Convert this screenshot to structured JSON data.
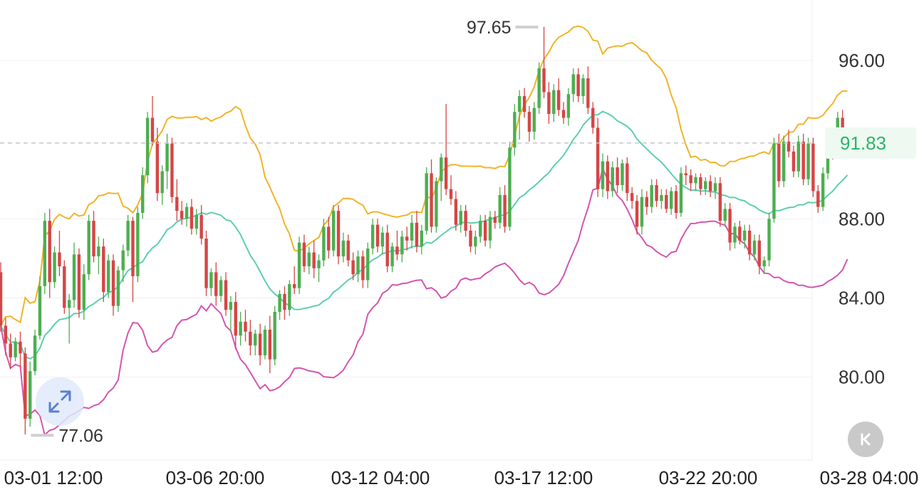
{
  "chart_data": {
    "type": "candlestick",
    "indicators": [
      "bollinger-upper",
      "bollinger-middle",
      "bollinger-lower"
    ],
    "y_ticks": [
      "96.00",
      "88.00",
      "84.00",
      "80.00"
    ],
    "y_tick_values": [
      96,
      88,
      84,
      80
    ],
    "x_ticks": [
      "03-01 12:00",
      "03-06 20:00",
      "03-12 04:00",
      "03-17 12:00",
      "03-22 20:00",
      "03-28 04:00"
    ],
    "current_price": {
      "label": "91.83",
      "value": 91.83
    },
    "high_marker": {
      "label": "97.65",
      "value": 97.65
    },
    "low_marker": {
      "label": "77.06",
      "value": 77.06
    },
    "grid": true,
    "colors": {
      "up": "#4caf50",
      "down": "#d64545",
      "upper_band": "#f0b429",
      "middle_band": "#5ccfb0",
      "lower_band": "#d455b0",
      "current_price": "#2fb36b",
      "grid": "#efefef"
    },
    "candles": [
      [
        85.3,
        85.8,
        82.3,
        82.6
      ],
      [
        82.6,
        83.0,
        81.1,
        81.7
      ],
      [
        81.7,
        82.2,
        80.4,
        81.0
      ],
      [
        81.0,
        82.0,
        80.8,
        81.8
      ],
      [
        81.8,
        82.3,
        80.5,
        81.2
      ],
      [
        81.2,
        81.5,
        77.1,
        77.9
      ],
      [
        77.9,
        80.8,
        77.5,
        80.3
      ],
      [
        80.3,
        82.4,
        80.1,
        82.1
      ],
      [
        82.1,
        85.1,
        81.9,
        84.6
      ],
      [
        84.6,
        88.3,
        84.2,
        87.9
      ],
      [
        87.9,
        88.5,
        84.0,
        84.8
      ],
      [
        84.8,
        86.6,
        84.5,
        86.3
      ],
      [
        86.3,
        87.4,
        85.1,
        85.6
      ],
      [
        85.6,
        85.9,
        83.2,
        83.5
      ],
      [
        83.5,
        84.2,
        81.7,
        83.9
      ],
      [
        83.9,
        86.8,
        83.5,
        86.2
      ],
      [
        86.2,
        86.5,
        83.0,
        83.4
      ],
      [
        83.4,
        85.7,
        82.9,
        85.2
      ],
      [
        85.2,
        88.2,
        84.9,
        87.9
      ],
      [
        87.9,
        88.4,
        85.8,
        86.1
      ],
      [
        86.1,
        87.1,
        85.2,
        86.6
      ],
      [
        86.6,
        87.0,
        83.8,
        84.3
      ],
      [
        84.3,
        86.2,
        84.0,
        85.9
      ],
      [
        85.9,
        86.2,
        83.1,
        83.6
      ],
      [
        83.6,
        85.6,
        83.3,
        85.4
      ],
      [
        85.4,
        86.7,
        84.8,
        86.4
      ],
      [
        86.4,
        88.2,
        86.1,
        87.9
      ],
      [
        87.9,
        88.1,
        83.8,
        85.1
      ],
      [
        85.1,
        88.6,
        84.8,
        88.3
      ],
      [
        88.3,
        90.6,
        88.0,
        90.2
      ],
      [
        90.2,
        93.4,
        89.8,
        93.1
      ],
      [
        93.1,
        94.2,
        91.7,
        91.9
      ],
      [
        91.9,
        92.6,
        88.9,
        89.3
      ],
      [
        89.3,
        90.7,
        88.7,
        90.4
      ],
      [
        90.4,
        92.3,
        89.5,
        91.8
      ],
      [
        91.8,
        92.1,
        88.8,
        89.1
      ],
      [
        89.1,
        90.0,
        87.9,
        88.4
      ],
      [
        88.4,
        88.9,
        87.7,
        88.0
      ],
      [
        88.0,
        88.8,
        87.6,
        88.6
      ],
      [
        88.6,
        89.0,
        87.2,
        87.5
      ],
      [
        87.5,
        88.5,
        87.2,
        88.2
      ],
      [
        88.2,
        88.7,
        86.7,
        87.0
      ],
      [
        87.0,
        87.4,
        84.1,
        84.5
      ],
      [
        84.5,
        85.5,
        84.1,
        85.3
      ],
      [
        85.3,
        85.8,
        83.6,
        84.1
      ],
      [
        84.1,
        85.1,
        83.8,
        84.9
      ],
      [
        84.9,
        85.3,
        83.1,
        83.4
      ],
      [
        83.4,
        84.1,
        82.3,
        83.8
      ],
      [
        83.8,
        84.3,
        81.4,
        82.1
      ],
      [
        82.1,
        83.3,
        81.6,
        82.8
      ],
      [
        82.8,
        83.4,
        81.8,
        82.3
      ],
      [
        82.3,
        82.9,
        81.1,
        81.6
      ],
      [
        81.6,
        82.4,
        81.1,
        82.2
      ],
      [
        82.2,
        82.7,
        80.6,
        81.1
      ],
      [
        81.1,
        82.6,
        80.9,
        82.4
      ],
      [
        82.4,
        83.1,
        80.2,
        80.9
      ],
      [
        80.9,
        83.6,
        80.6,
        83.3
      ],
      [
        83.3,
        84.4,
        82.9,
        84.2
      ],
      [
        84.2,
        84.6,
        82.9,
        83.4
      ],
      [
        83.4,
        84.9,
        83.1,
        84.7
      ],
      [
        84.7,
        85.6,
        84.2,
        84.5
      ],
      [
        84.5,
        87.1,
        84.2,
        86.8
      ],
      [
        86.8,
        87.2,
        85.3,
        85.6
      ],
      [
        85.6,
        86.6,
        85.2,
        86.3
      ],
      [
        86.3,
        86.9,
        85.0,
        85.5
      ],
      [
        85.5,
        86.2,
        84.8,
        85.9
      ],
      [
        85.9,
        88.0,
        85.6,
        87.6
      ],
      [
        87.6,
        88.1,
        86.0,
        86.4
      ],
      [
        86.4,
        88.7,
        86.1,
        88.4
      ],
      [
        88.4,
        88.7,
        85.7,
        86.1
      ],
      [
        86.1,
        87.3,
        85.8,
        86.9
      ],
      [
        86.9,
        87.2,
        85.6,
        85.9
      ],
      [
        85.9,
        86.3,
        84.9,
        85.2
      ],
      [
        85.2,
        86.4,
        84.8,
        86.1
      ],
      [
        86.1,
        86.4,
        84.5,
        84.9
      ],
      [
        84.9,
        86.8,
        84.5,
        86.5
      ],
      [
        86.5,
        88.0,
        86.2,
        87.7
      ],
      [
        87.7,
        88.0,
        86.3,
        86.6
      ],
      [
        86.6,
        87.6,
        86.2,
        87.3
      ],
      [
        87.3,
        87.7,
        85.3,
        85.6
      ],
      [
        85.6,
        86.8,
        85.3,
        86.6
      ],
      [
        86.6,
        87.4,
        85.9,
        86.2
      ],
      [
        86.2,
        87.4,
        85.8,
        87.1
      ],
      [
        87.1,
        87.6,
        86.4,
        86.9
      ],
      [
        86.9,
        88.2,
        86.5,
        87.8
      ],
      [
        87.8,
        88.4,
        86.3,
        86.6
      ],
      [
        86.6,
        87.7,
        86.2,
        87.4
      ],
      [
        87.4,
        90.6,
        87.2,
        90.3
      ],
      [
        90.3,
        91.0,
        87.3,
        87.6
      ],
      [
        87.6,
        90.1,
        87.3,
        89.9
      ],
      [
        89.9,
        91.3,
        88.9,
        91.1
      ],
      [
        91.1,
        93.8,
        89.2,
        89.5
      ],
      [
        89.5,
        90.2,
        88.7,
        89.0
      ],
      [
        89.0,
        89.4,
        87.4,
        87.7
      ],
      [
        87.7,
        88.7,
        87.3,
        88.4
      ],
      [
        88.4,
        88.7,
        87.1,
        87.4
      ],
      [
        87.4,
        87.7,
        86.3,
        86.6
      ],
      [
        86.6,
        87.4,
        86.2,
        87.1
      ],
      [
        87.1,
        88.2,
        86.8,
        87.9
      ],
      [
        87.9,
        88.2,
        86.6,
        86.9
      ],
      [
        86.9,
        88.4,
        86.5,
        88.1
      ],
      [
        88.1,
        88.4,
        87.5,
        87.8
      ],
      [
        87.8,
        89.6,
        87.5,
        89.2
      ],
      [
        89.2,
        89.7,
        87.3,
        87.6
      ],
      [
        87.6,
        91.9,
        87.4,
        91.6
      ],
      [
        91.6,
        93.8,
        91.2,
        93.4
      ],
      [
        93.4,
        94.5,
        92.0,
        94.2
      ],
      [
        94.2,
        94.6,
        93.1,
        93.4
      ],
      [
        93.4,
        93.7,
        91.9,
        92.4
      ],
      [
        92.4,
        93.9,
        92.0,
        93.6
      ],
      [
        93.6,
        95.9,
        93.3,
        95.6
      ],
      [
        95.6,
        97.7,
        94.1,
        94.4
      ],
      [
        94.4,
        94.9,
        92.8,
        93.3
      ],
      [
        93.3,
        94.8,
        92.9,
        94.5
      ],
      [
        94.5,
        95.1,
        93.2,
        93.5
      ],
      [
        93.5,
        93.9,
        92.8,
        93.1
      ],
      [
        93.1,
        94.6,
        92.7,
        94.3
      ],
      [
        94.3,
        95.6,
        93.9,
        95.3
      ],
      [
        95.3,
        95.6,
        93.9,
        94.2
      ],
      [
        94.2,
        95.3,
        93.8,
        95.1
      ],
      [
        95.1,
        95.7,
        93.3,
        93.6
      ],
      [
        93.6,
        93.9,
        92.3,
        92.6
      ],
      [
        92.6,
        93.1,
        89.1,
        89.5
      ],
      [
        89.5,
        91.3,
        89.1,
        90.9
      ],
      [
        90.9,
        91.2,
        89.0,
        89.4
      ],
      [
        89.4,
        90.9,
        89.1,
        90.6
      ],
      [
        90.6,
        91.1,
        89.3,
        89.7
      ],
      [
        89.7,
        91.0,
        89.4,
        90.8
      ],
      [
        90.8,
        91.1,
        88.9,
        89.3
      ],
      [
        89.3,
        89.6,
        88.5,
        88.9
      ],
      [
        88.9,
        89.2,
        87.2,
        87.6
      ],
      [
        87.6,
        89.5,
        87.2,
        89.1
      ],
      [
        89.1,
        89.4,
        88.2,
        88.6
      ],
      [
        88.6,
        90.0,
        88.3,
        89.7
      ],
      [
        89.7,
        90.0,
        88.6,
        88.9
      ],
      [
        88.9,
        89.5,
        88.5,
        89.2
      ],
      [
        89.2,
        89.5,
        88.3,
        88.5
      ],
      [
        88.5,
        89.6,
        88.2,
        89.4
      ],
      [
        89.4,
        89.7,
        88.0,
        88.3
      ],
      [
        88.3,
        90.6,
        88.1,
        90.3
      ],
      [
        90.3,
        90.7,
        89.7,
        90.2
      ],
      [
        90.2,
        90.5,
        89.4,
        89.8
      ],
      [
        89.8,
        90.3,
        89.4,
        90.1
      ],
      [
        90.1,
        90.3,
        89.2,
        89.5
      ],
      [
        89.5,
        90.1,
        89.2,
        89.9
      ],
      [
        89.9,
        90.2,
        89.1,
        89.4
      ],
      [
        89.4,
        90.1,
        89.0,
        89.8
      ],
      [
        89.8,
        90.1,
        87.6,
        87.9
      ],
      [
        87.9,
        88.8,
        87.6,
        88.5
      ],
      [
        88.5,
        88.8,
        86.4,
        86.8
      ],
      [
        86.8,
        87.8,
        86.5,
        87.6
      ],
      [
        87.6,
        87.9,
        86.7,
        86.9
      ],
      [
        86.9,
        87.7,
        86.5,
        87.4
      ],
      [
        87.4,
        87.7,
        85.9,
        86.2
      ],
      [
        86.2,
        87.2,
        85.9,
        86.9
      ],
      [
        86.9,
        87.2,
        85.2,
        85.6
      ],
      [
        85.6,
        86.1,
        85.2,
        85.9
      ],
      [
        85.9,
        88.3,
        85.6,
        88.0
      ],
      [
        88.0,
        92.1,
        87.8,
        91.8
      ],
      [
        91.8,
        92.3,
        89.6,
        89.9
      ],
      [
        89.9,
        92.2,
        89.6,
        91.9
      ],
      [
        91.9,
        92.5,
        91.1,
        91.4
      ],
      [
        91.4,
        91.7,
        90.1,
        90.4
      ],
      [
        90.4,
        92.2,
        90.1,
        91.9
      ],
      [
        91.9,
        92.3,
        89.7,
        90.0
      ],
      [
        90.0,
        92.1,
        89.7,
        91.8
      ],
      [
        91.8,
        92.1,
        89.1,
        89.4
      ],
      [
        89.4,
        89.7,
        88.3,
        88.6
      ],
      [
        88.6,
        90.6,
        88.4,
        90.3
      ],
      [
        90.3,
        92.2,
        90.0,
        91.9
      ],
      [
        91.9,
        92.3,
        91.0,
        91.7
      ],
      [
        91.7,
        93.4,
        91.4,
        93.1
      ],
      [
        93.1,
        93.5,
        91.4,
        91.9
      ],
      [
        91.9,
        92.6,
        91.4,
        91.83
      ]
    ]
  }
}
